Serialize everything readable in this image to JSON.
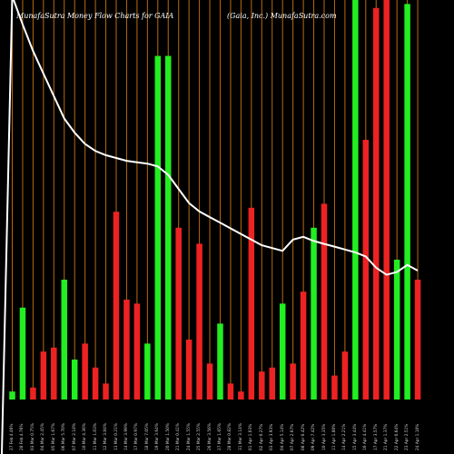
{
  "header": {
    "left_title": "MunafaSutra  Money  Flow  Charts for GAIA",
    "right_title": "(Gaia,  Inc.)  MunafaSutra.com"
  },
  "colors": {
    "up": "#22ee22",
    "down": "#ee2222",
    "grid": "#b86a10",
    "line": "#ffffff",
    "background": "#000000"
  },
  "chart_data": {
    "type": "bar",
    "title": "MunafaSutra Money Flow Charts for GAIA",
    "ylim": [
      0,
      100
    ],
    "bars": [
      {
        "label": "27 Feb 4.46%",
        "value": 2,
        "color": "green"
      },
      {
        "label": "28 Feb 4.76%",
        "value": 23,
        "color": "green"
      },
      {
        "label": "03 Mar 0.75%",
        "value": 3,
        "color": "red"
      },
      {
        "label": "04 Mar 2.45%",
        "value": 12,
        "color": "red"
      },
      {
        "label": "05 Mar 1.67%",
        "value": 13,
        "color": "red"
      },
      {
        "label": "06 Mar 5.70%",
        "value": 30,
        "color": "green"
      },
      {
        "label": "07 Mar 2.18%",
        "value": 10,
        "color": "green"
      },
      {
        "label": "10 Mar 4.36%",
        "value": 14,
        "color": "red"
      },
      {
        "label": "11 Mar 1.03%",
        "value": 8,
        "color": "red"
      },
      {
        "label": "12 Mar 3.84%",
        "value": 4,
        "color": "red"
      },
      {
        "label": "13 Mar 0.21%",
        "value": 47,
        "color": "red"
      },
      {
        "label": "14 Mar 3.99%",
        "value": 25,
        "color": "red"
      },
      {
        "label": "17 Mar 0.97%",
        "value": 24,
        "color": "red"
      },
      {
        "label": "18 Mar 7.05%",
        "value": 14,
        "color": "green"
      },
      {
        "label": "19 Mar 3.64%",
        "value": 86,
        "color": "green"
      },
      {
        "label": "20 Mar 1.50%",
        "value": 86,
        "color": "green"
      },
      {
        "label": "21 Mar 0.41%",
        "value": 43,
        "color": "red"
      },
      {
        "label": "24 Mar 1.55%",
        "value": 15,
        "color": "red"
      },
      {
        "label": "25 Mar 2.55%",
        "value": 39,
        "color": "red"
      },
      {
        "label": "26 Mar 3.56%",
        "value": 9,
        "color": "red"
      },
      {
        "label": "27 Mar 1.65%",
        "value": 19,
        "color": "green"
      },
      {
        "label": "28 Mar 0.82%",
        "value": 4,
        "color": "red"
      },
      {
        "label": "31 Mar 3.14%",
        "value": 2,
        "color": "red"
      },
      {
        "label": "01 Apr 1.03%",
        "value": 48,
        "color": "red"
      },
      {
        "label": "02 Apr 0.27%",
        "value": 7,
        "color": "red"
      },
      {
        "label": "03 Apr 3.93%",
        "value": 8,
        "color": "red"
      },
      {
        "label": "04 Apr 5.14%",
        "value": 24,
        "color": "green"
      },
      {
        "label": "07 Apr 2.67%",
        "value": 9,
        "color": "red"
      },
      {
        "label": "08 Apr 0.42%",
        "value": 27,
        "color": "red"
      },
      {
        "label": "09 Apr 7.42%",
        "value": 43,
        "color": "green"
      },
      {
        "label": "10 Apr 3.35%",
        "value": 49,
        "color": "red"
      },
      {
        "label": "11 Apr 1.80%",
        "value": 6,
        "color": "red"
      },
      {
        "label": "14 Apr 2.21%",
        "value": 12,
        "color": "red"
      },
      {
        "label": "15 Apr 3.44%",
        "value": 100,
        "color": "green"
      },
      {
        "label": "16 Apr 4.41%",
        "value": 65,
        "color": "red"
      },
      {
        "label": "17 Apr 3.57%",
        "value": 98,
        "color": "red"
      },
      {
        "label": "21 Apr 1.37%",
        "value": 100,
        "color": "red"
      },
      {
        "label": "22 Apr 0.64%",
        "value": 35,
        "color": "green"
      },
      {
        "label": "23 Apr 2.51%",
        "value": 99,
        "color": "green"
      },
      {
        "label": "24 Apr 1.10%",
        "value": 30,
        "color": "red"
      }
    ],
    "price_line": [
      135,
      115,
      96,
      80,
      64,
      48,
      38,
      30,
      25,
      22,
      20,
      18,
      17,
      16,
      14,
      8,
      -2,
      -12,
      -18,
      -22,
      -26,
      -30,
      -34,
      -38,
      -42,
      -44,
      -46,
      -38,
      -36,
      -39,
      -41,
      -43,
      -45,
      -47,
      -50,
      -58,
      -63,
      -61,
      -56,
      -60
    ]
  }
}
